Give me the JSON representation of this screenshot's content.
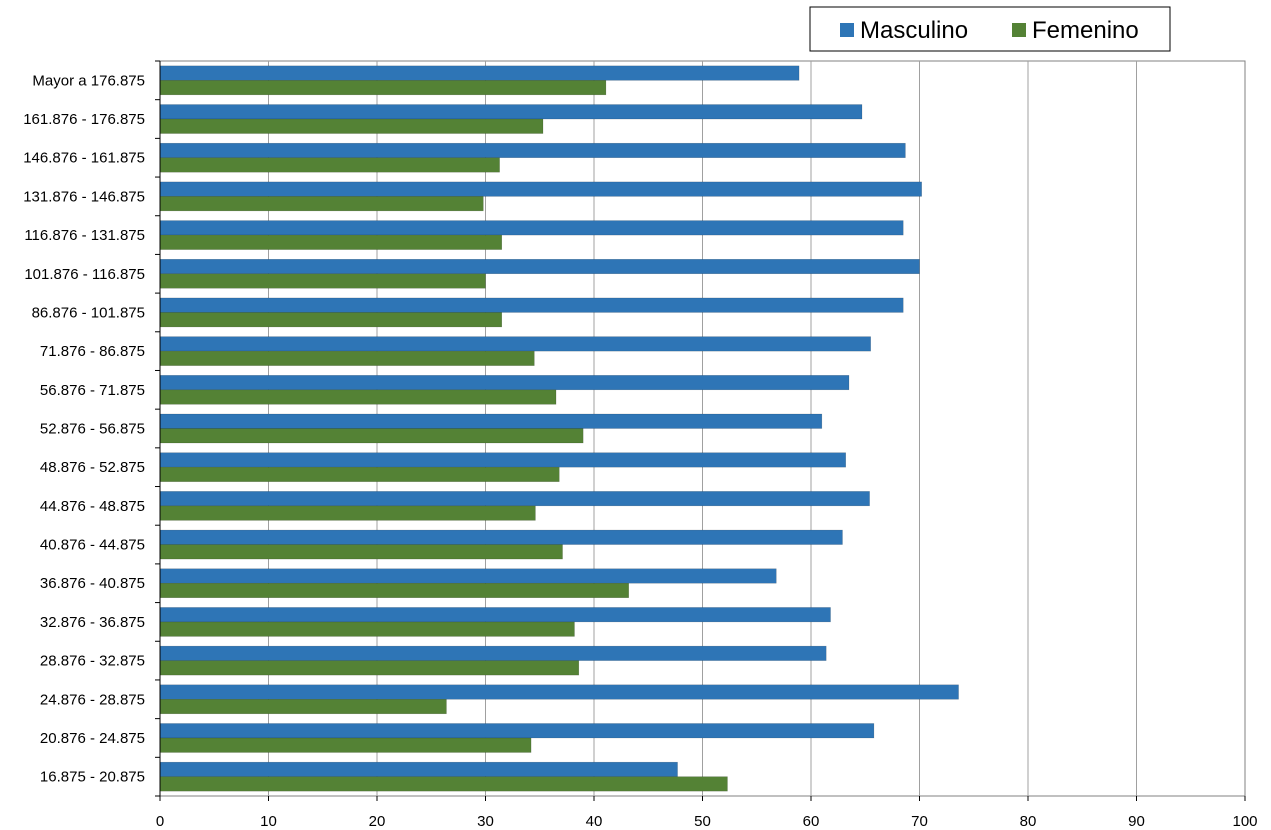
{
  "chart_data": {
    "type": "bar",
    "orientation": "horizontal",
    "categories": [
      "Mayor a 176.875",
      "161.876 - 176.875",
      "146.876 - 161.875",
      "131.876 - 146.875",
      "116.876 - 131.875",
      "101.876 - 116.875",
      "86.876 - 101.875",
      "71.876 - 86.875",
      "56.876 - 71.875",
      "52.876 - 56.875",
      "48.876 - 52.875",
      "44.876 - 48.875",
      "40.876 - 44.875",
      "36.876 - 40.875",
      "32.876 - 36.875",
      "28.876 - 32.875",
      "24.876 - 28.875",
      "20.876 - 24.875",
      "16.875 - 20.875"
    ],
    "series": [
      {
        "name": "Masculino",
        "color": "#2e75b6",
        "values": [
          58.9,
          64.7,
          68.7,
          70.2,
          68.5,
          70.0,
          68.5,
          65.5,
          63.5,
          61.0,
          63.2,
          65.4,
          62.9,
          56.8,
          61.8,
          61.4,
          73.6,
          65.8,
          47.7
        ]
      },
      {
        "name": "Femenino",
        "color": "#548235",
        "values": [
          41.1,
          35.3,
          31.3,
          29.8,
          31.5,
          30.0,
          31.5,
          34.5,
          36.5,
          39.0,
          36.8,
          34.6,
          37.1,
          43.2,
          38.2,
          38.6,
          26.4,
          34.2,
          52.3
        ]
      }
    ],
    "xlim": [
      0,
      100
    ],
    "xticks": [
      0,
      10,
      20,
      30,
      40,
      50,
      60,
      70,
      80,
      90,
      100
    ],
    "grid": true,
    "legend_position": "top-right",
    "title": "",
    "xlabel": "",
    "ylabel": ""
  }
}
